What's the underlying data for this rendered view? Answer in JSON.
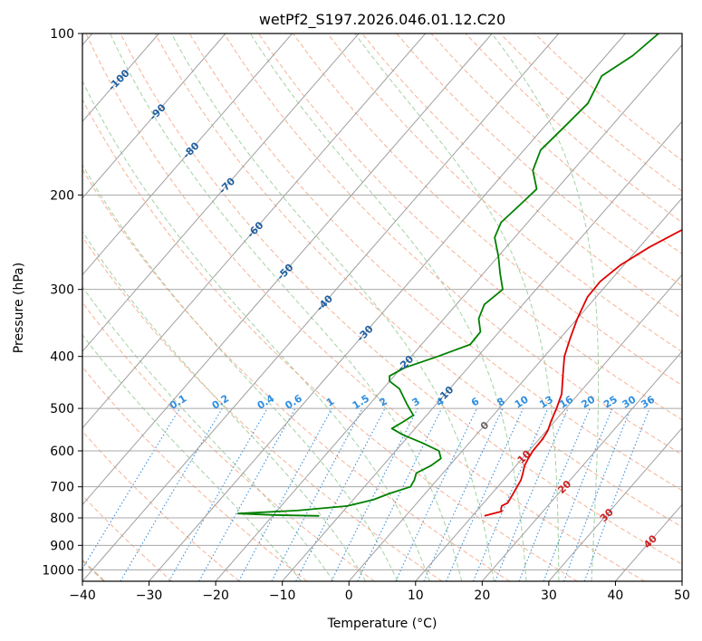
{
  "chart_data": {
    "type": "line",
    "title": "wetPf2_S197.2026.046.01.12.C20",
    "xlabel": "Temperature (°C)",
    "ylabel": "Pressure (hPa)",
    "xlim": [
      -40,
      50
    ],
    "ylim": [
      1050,
      100
    ],
    "y_scale": "log",
    "grid": true,
    "x_ticks": [
      -40,
      -30,
      -20,
      -10,
      0,
      10,
      20,
      30,
      40,
      50
    ],
    "y_ticks": [
      100,
      200,
      300,
      400,
      500,
      600,
      700,
      800,
      900,
      1000
    ],
    "skew_per_decade_c": 70,
    "series": [
      {
        "color": "#e00000",
        "points": [
          [
            793,
            11.8
          ],
          [
            785,
            12.8
          ],
          [
            778,
            13.8
          ],
          [
            770,
            13.4
          ],
          [
            760,
            13.1
          ],
          [
            750,
            13.6
          ],
          [
            720,
            13.2
          ],
          [
            680,
            12.6
          ],
          [
            660,
            12.0
          ],
          [
            640,
            11.3
          ],
          [
            620,
            10.9
          ],
          [
            600,
            10.6
          ],
          [
            570,
            10.5
          ],
          [
            550,
            10.2
          ],
          [
            530,
            9.5
          ],
          [
            500,
            8.6
          ],
          [
            470,
            7.5
          ],
          [
            430,
            5.0
          ],
          [
            400,
            3.0
          ],
          [
            370,
            1.5
          ],
          [
            340,
            0.0
          ],
          [
            310,
            -1.3
          ],
          [
            290,
            -1.4
          ],
          [
            270,
            -0.5
          ],
          [
            250,
            1.5
          ],
          [
            230,
            4.5
          ],
          [
            210,
            8.0
          ],
          [
            190,
            10.0
          ],
          [
            170,
            11.5
          ],
          [
            150,
            13.0
          ],
          [
            130,
            14.0
          ],
          [
            115,
            16.0
          ],
          [
            100,
            20.0
          ]
        ]
      },
      {
        "color": "#008000",
        "points": [
          [
            793,
            -13.0
          ],
          [
            790,
            -20.0
          ],
          [
            785,
            -25.5
          ],
          [
            775,
            -17.0
          ],
          [
            760,
            -10.0
          ],
          [
            740,
            -7.0
          ],
          [
            720,
            -5.3
          ],
          [
            700,
            -3.1
          ],
          [
            680,
            -3.4
          ],
          [
            660,
            -4.0
          ],
          [
            640,
            -2.8
          ],
          [
            620,
            -2.2
          ],
          [
            600,
            -3.5
          ],
          [
            580,
            -7.0
          ],
          [
            560,
            -11.0
          ],
          [
            545,
            -13.5
          ],
          [
            530,
            -12.7
          ],
          [
            515,
            -12.0
          ],
          [
            490,
            -14.5
          ],
          [
            460,
            -17.5
          ],
          [
            445,
            -20.0
          ],
          [
            435,
            -20.7
          ],
          [
            420,
            -19.5
          ],
          [
            400,
            -16.0
          ],
          [
            380,
            -12.7
          ],
          [
            360,
            -12.8
          ],
          [
            340,
            -14.8
          ],
          [
            320,
            -15.8
          ],
          [
            300,
            -15.0
          ],
          [
            280,
            -17.5
          ],
          [
            260,
            -20.0
          ],
          [
            240,
            -23.0
          ],
          [
            225,
            -24.0
          ],
          [
            210,
            -23.5
          ],
          [
            195,
            -23.0
          ],
          [
            180,
            -26.0
          ],
          [
            165,
            -27.5
          ],
          [
            150,
            -27.0
          ],
          [
            135,
            -26.5
          ],
          [
            120,
            -28.0
          ],
          [
            110,
            -26.0
          ],
          [
            100,
            -25.0
          ]
        ]
      }
    ],
    "dry_adiabats": [
      -30,
      -20,
      -10,
      0,
      10,
      20,
      30,
      40,
      50,
      60,
      70,
      80,
      90,
      100,
      110,
      120,
      130,
      140,
      150,
      160,
      170
    ],
    "moist_adiabats": [
      -10,
      -5,
      0,
      5,
      10,
      15,
      20,
      25,
      30,
      35
    ],
    "mixing_ratio_lines": [
      {
        "value": 0.1,
        "label": "0.1"
      },
      {
        "value": 0.2,
        "label": "0.2"
      },
      {
        "value": 0.4,
        "label": "0.4"
      },
      {
        "value": 0.6,
        "label": "0.6"
      },
      {
        "value": 1,
        "label": "1"
      },
      {
        "value": 1.5,
        "label": "1.5"
      },
      {
        "value": 2,
        "label": "2"
      },
      {
        "value": 3,
        "label": "3"
      },
      {
        "value": 4,
        "label": "4"
      },
      {
        "value": 6,
        "label": "6"
      },
      {
        "value": 8,
        "label": "8"
      },
      {
        "value": 10,
        "label": "10"
      },
      {
        "value": 13,
        "label": "13"
      },
      {
        "value": 16,
        "label": "16"
      },
      {
        "value": 20,
        "label": "20"
      },
      {
        "value": 25,
        "label": "25"
      },
      {
        "value": 30,
        "label": "30"
      },
      {
        "value": 36,
        "label": "36"
      }
    ],
    "isotherm_labels": [
      {
        "value": -100,
        "label": "-100",
        "p": 122,
        "color": "#1f5fa0"
      },
      {
        "value": -90,
        "label": "-90",
        "p": 140,
        "color": "#1f5fa0"
      },
      {
        "value": -80,
        "label": "-80",
        "p": 165,
        "color": "#1f5fa0"
      },
      {
        "value": -70,
        "label": "-70",
        "p": 192,
        "color": "#1f5fa0"
      },
      {
        "value": -60,
        "label": "-60",
        "p": 232,
        "color": "#1f5fa0"
      },
      {
        "value": -50,
        "label": "-50",
        "p": 278,
        "color": "#1f5fa0"
      },
      {
        "value": -40,
        "label": "-40",
        "p": 318,
        "color": "#1f5fa0"
      },
      {
        "value": -30,
        "label": "-30",
        "p": 362,
        "color": "#1f5fa0"
      },
      {
        "value": -20,
        "label": "-20",
        "p": 412,
        "color": "#1f5fa0"
      },
      {
        "value": -10,
        "label": "-10",
        "p": 470,
        "color": "#1f5fa0"
      },
      {
        "value": 0,
        "label": "0",
        "p": 538,
        "color": "#666666"
      },
      {
        "value": 10,
        "label": "10",
        "p": 615,
        "color": "#cc2020"
      },
      {
        "value": 20,
        "label": "20",
        "p": 700,
        "color": "#cc2020"
      },
      {
        "value": 30,
        "label": "30",
        "p": 790,
        "color": "#cc2020"
      },
      {
        "value": 40,
        "label": "40",
        "p": 885,
        "color": "#cc2020"
      }
    ],
    "colors": {
      "isotherm": "#a0a0a0",
      "isobar": "#a8a8a8",
      "dry_adiabat": "#f4a582",
      "moist_adiabat": "#99cc99",
      "mixing_ratio": "#3a8fdc",
      "mixing_label": "#2f8ee0",
      "boundary": "#d9b89a"
    }
  }
}
